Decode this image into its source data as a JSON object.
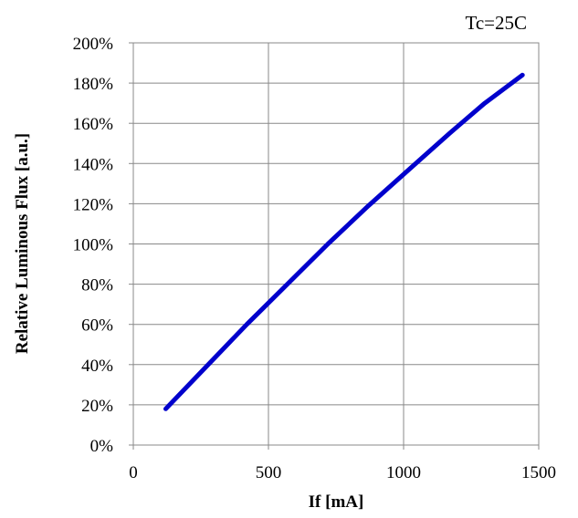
{
  "chart_data": {
    "type": "line",
    "title": "",
    "annotation": "Tc=25C",
    "xlabel": "If [mA]",
    "ylabel": "Relative Luminous Flux [a.u.]",
    "xlim": [
      0,
      1500
    ],
    "ylim": [
      0,
      200
    ],
    "xticks": [
      0,
      500,
      1000,
      1500
    ],
    "xtick_labels": [
      "0",
      "500",
      "1000",
      "1500"
    ],
    "yticks": [
      0,
      20,
      40,
      60,
      80,
      100,
      120,
      140,
      160,
      180,
      200
    ],
    "ytick_labels": [
      "0%",
      "20%",
      "40%",
      "60%",
      "80%",
      "100%",
      "120%",
      "140%",
      "160%",
      "180%",
      "200%"
    ],
    "grid": true,
    "legend": "none",
    "series_color": "#0000cc",
    "series": [
      {
        "x": [
          120,
          270,
          420,
          570,
          720,
          870,
          1020,
          1170,
          1300,
          1440
        ],
        "y": [
          18,
          39,
          60,
          80,
          100,
          119,
          137,
          155,
          170,
          184
        ]
      }
    ]
  }
}
